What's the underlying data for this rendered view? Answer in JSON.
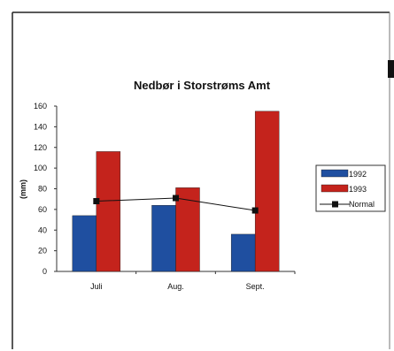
{
  "chart_data": {
    "type": "bar",
    "title": "Nedbør i Storstrøms Amt",
    "xlabel": "",
    "ylabel": "(mm)",
    "ylim": [
      0,
      160
    ],
    "yticks": [
      0,
      20,
      40,
      60,
      80,
      100,
      120,
      140,
      160
    ],
    "categories": [
      "Juli",
      "Aug.",
      "Sept."
    ],
    "series": [
      {
        "name": "1992",
        "type": "bar",
        "color": "#1f4fa0",
        "values": [
          54,
          64,
          36
        ]
      },
      {
        "name": "1993",
        "type": "bar",
        "color": "#c4231c",
        "values": [
          116,
          81,
          155
        ]
      },
      {
        "name": "Normal",
        "type": "line",
        "color": "#111111",
        "marker": "square",
        "values": [
          68,
          71,
          59
        ]
      }
    ],
    "grid": false,
    "legend": "right"
  }
}
